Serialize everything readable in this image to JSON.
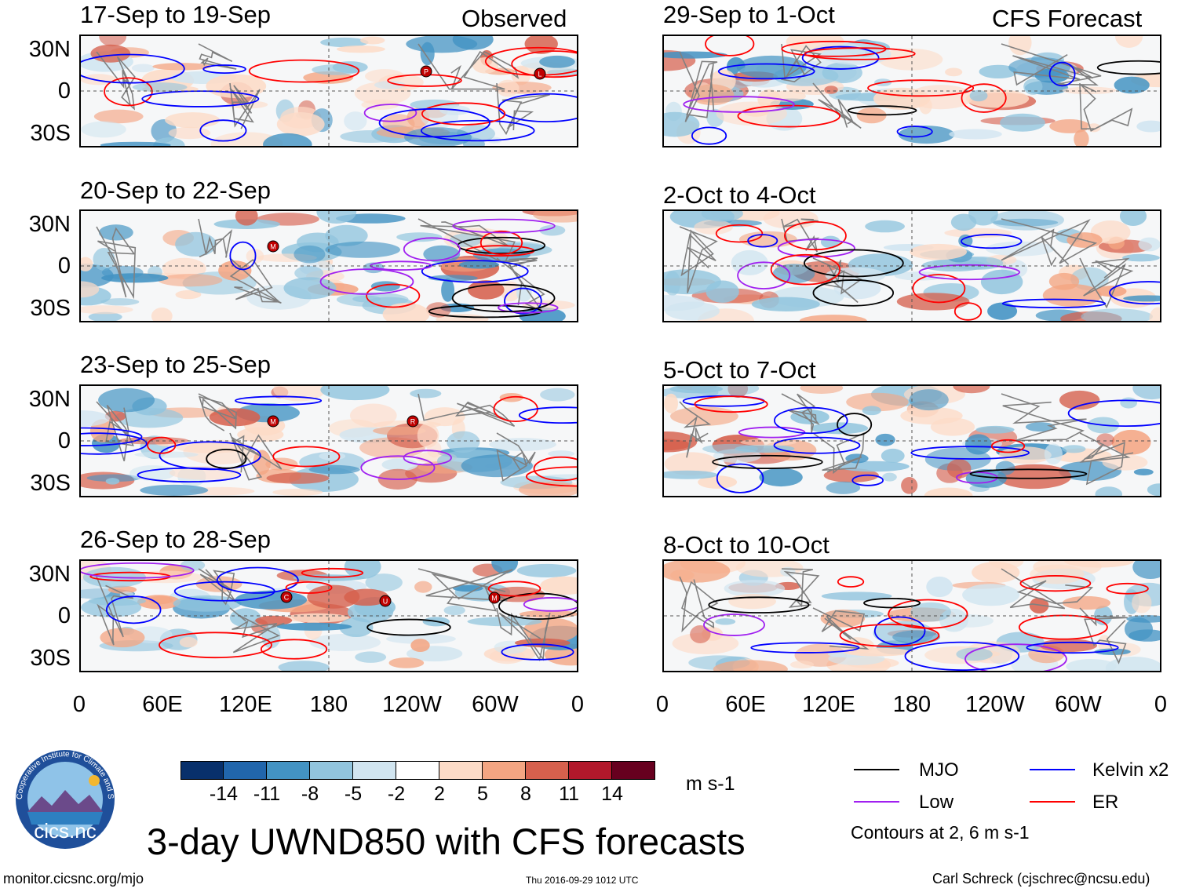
{
  "header_labels": {
    "observed": "Observed",
    "forecast": "CFS Forecast"
  },
  "panels": [
    {
      "title": "17-Sep to 19-Sep",
      "group": "observed",
      "storms": [
        "P",
        "L"
      ]
    },
    {
      "title": "20-Sep to 22-Sep",
      "group": "observed",
      "storms": [
        "M"
      ]
    },
    {
      "title": "23-Sep to 25-Sep",
      "group": "observed",
      "storms": [
        "M",
        "R"
      ]
    },
    {
      "title": "26-Sep to 28-Sep",
      "group": "observed",
      "storms": [
        "C",
        "U",
        "M"
      ]
    },
    {
      "title": "29-Sep to 1-Oct",
      "group": "forecast",
      "storms": []
    },
    {
      "title": "2-Oct to 4-Oct",
      "group": "forecast",
      "storms": []
    },
    {
      "title": "5-Oct to 7-Oct",
      "group": "forecast",
      "storms": []
    },
    {
      "title": "8-Oct to 10-Oct",
      "group": "forecast",
      "storms": []
    }
  ],
  "lat_labels": [
    "30N",
    "0",
    "30S"
  ],
  "lon_labels": [
    "0",
    "60E",
    "120E",
    "180",
    "120W",
    "60W",
    "0"
  ],
  "colorbar": {
    "colors": [
      "#08306b",
      "#2166ac",
      "#4393c3",
      "#92c5de",
      "#d1e5f0",
      "#ffffff",
      "#fddbc7",
      "#f4a582",
      "#d6604d",
      "#b2182b",
      "#67001f"
    ],
    "tick_labels": [
      "-14",
      "-11",
      "-8",
      "-5",
      "-2",
      "2",
      "5",
      "8",
      "11",
      "14"
    ],
    "units": "m s-1"
  },
  "legend": {
    "items": [
      {
        "label": "MJO",
        "color": "#000000"
      },
      {
        "label": "Kelvin x2",
        "color": "#0000ff"
      },
      {
        "label": "Low",
        "color": "#a020f0"
      },
      {
        "label": "ER",
        "color": "#ff0000"
      }
    ],
    "note": "Contours at 2, 6 m s-1"
  },
  "title": "3-day UWND850 with CFS forecasts",
  "logo": {
    "text": "cics.nc",
    "ring_text": "Cooperative Institute for Climate and Satellites"
  },
  "footer": {
    "url": "monitor.cicsnc.org/mjo",
    "timestamp": "Thu 2016-09-29 1012 UTC",
    "credit": "Carl Schreck (cjschrec@ncsu.edu)"
  }
}
